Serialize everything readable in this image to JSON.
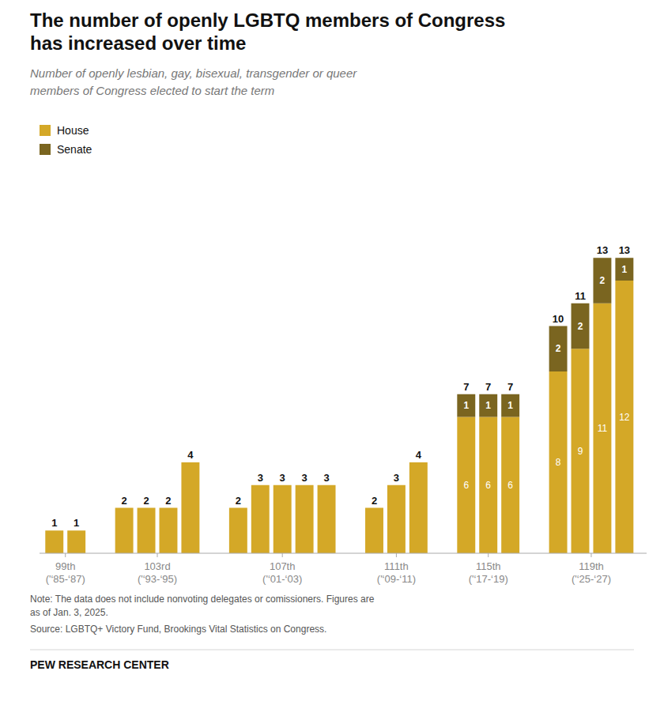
{
  "chart_data": {
    "type": "bar",
    "stacked": true,
    "title": "The number of openly LGBTQ members of Congress\nhas increased over time",
    "subtitle": "Number of openly lesbian, gay, bisexual, transgender or queer\nmembers of Congress elected to start the term",
    "note": "Note: The data does not include nonvoting delegates or comissioners. Figures are\nas of Jan. 3, 2025.",
    "source": "Source: LGBTQ+ Victory Fund, Brookings Vital Statistics on Congress.",
    "branding": "PEW RESEARCH CENTER",
    "categories": [
      "99th\n('‘85-‘87)",
      null,
      "103rd\n('‘93-‘95)",
      null,
      null,
      null,
      "107th\n('‘01-‘03)",
      null,
      null,
      null,
      null,
      "111th\n('‘09-‘11)",
      null,
      null,
      "115th\n('‘17-‘19)",
      null,
      null,
      "119th\n('‘25-‘27)",
      null,
      null,
      null
    ],
    "series": [
      {
        "name": "House",
        "color": "#D4A827",
        "values": [
          1,
          1,
          2,
          2,
          2,
          4,
          2,
          3,
          3,
          3,
          3,
          2,
          3,
          4,
          6,
          6,
          6,
          8,
          9,
          11,
          12
        ],
        "value_labels": [
          null,
          null,
          null,
          null,
          null,
          null,
          null,
          null,
          null,
          null,
          null,
          null,
          null,
          null,
          "6",
          "6",
          "6",
          "8",
          "9",
          "11",
          "12"
        ]
      },
      {
        "name": "Senate",
        "color": "#7A6520",
        "values": [
          0,
          0,
          0,
          0,
          0,
          0,
          0,
          0,
          0,
          0,
          0,
          0,
          0,
          0,
          1,
          1,
          1,
          2,
          2,
          2,
          1
        ],
        "value_labels": [
          null,
          null,
          null,
          null,
          null,
          null,
          null,
          null,
          null,
          null,
          null,
          null,
          null,
          null,
          "1",
          "1",
          "1",
          "2",
          "2",
          "2",
          "1"
        ]
      }
    ],
    "totals": [
      1,
      1,
      2,
      2,
      2,
      4,
      2,
      3,
      3,
      3,
      3,
      2,
      3,
      4,
      7,
      7,
      7,
      10,
      11,
      13,
      13
    ],
    "data_labels": true,
    "ylim": [
      0,
      16
    ],
    "tick_labels": "x",
    "grid": false,
    "legend": "top-left"
  }
}
